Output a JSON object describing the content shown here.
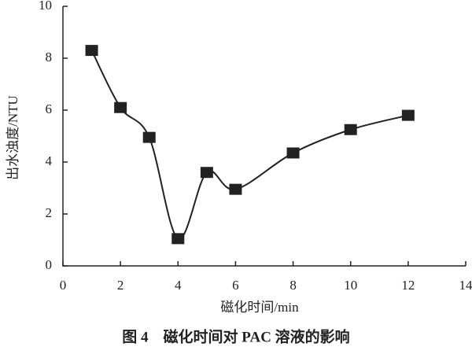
{
  "chart_data": {
    "type": "line",
    "caption": "图 4　磁化时间对 PAC 溶液的影响",
    "x_label": "磁化时间/min",
    "y_label": "出水浊度/NTU",
    "x": [
      1,
      2,
      3,
      4,
      5,
      6,
      8,
      10,
      12
    ],
    "series": [
      {
        "color": "#222222",
        "values": [
          8.3,
          6.1,
          4.95,
          1.05,
          3.6,
          2.95,
          4.35,
          5.25,
          5.8
        ]
      }
    ],
    "xlim": [
      0,
      14
    ],
    "xticks": [
      0,
      2,
      4,
      6,
      8,
      10,
      12,
      14
    ],
    "ylim": [
      0,
      10
    ],
    "yticks": [
      0,
      2,
      4,
      6,
      8,
      10
    ],
    "smooth": true,
    "marker": "square"
  }
}
